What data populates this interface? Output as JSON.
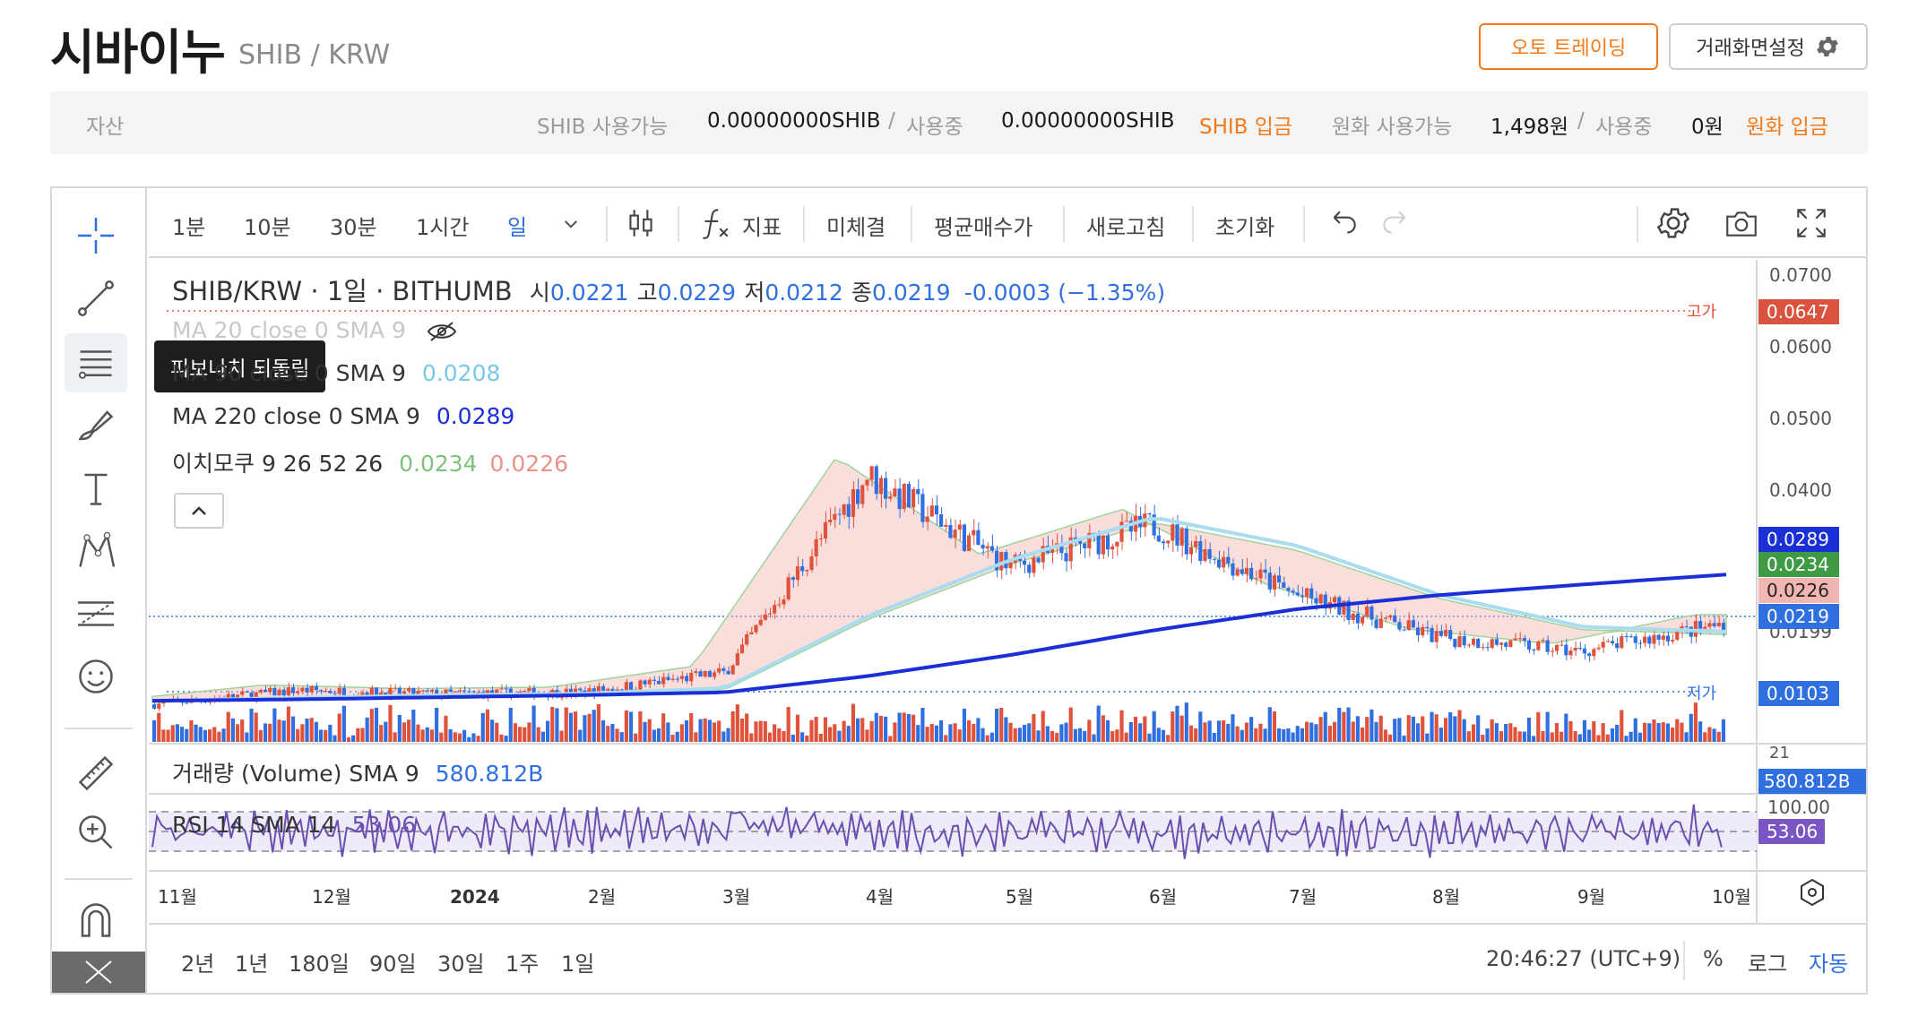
{
  "header": {
    "title": "시바이누",
    "pair": "SHIB / KRW",
    "auto_trading": "오토 트레이딩",
    "screen_settings": "거래화면설정"
  },
  "assets": {
    "label": "자산",
    "shib_available_label": "SHIB 사용가능",
    "shib_available_value": "0.00000000SHIB",
    "sep1": "/",
    "shib_in_use_label": "사용중",
    "shib_in_use_value": "0.00000000SHIB",
    "shib_deposit": "SHIB 입금",
    "krw_available_label": "원화 사용가능",
    "krw_available_value": "1,498원",
    "sep2": "/",
    "krw_in_use_label": "사용중",
    "krw_in_use_value": "0원",
    "krw_deposit": "원화 입금"
  },
  "toolbar": {
    "intervals": [
      "1분",
      "10분",
      "30분",
      "1시간",
      "일"
    ],
    "indicators": "지표",
    "unfilled": "미체결",
    "avg_price": "평균매수가",
    "refresh": "새로고침",
    "reset": "초기화"
  },
  "tooltip": "피보나치 되돌림",
  "legend": {
    "symbol": "SHIB/KRW · 1일 · BITHUMB",
    "o_label": "시",
    "o": "0.0221",
    "h_label": "고",
    "h": "0.0229",
    "l_label": "저",
    "l": "0.0212",
    "c_label": "종",
    "c": "0.0219",
    "change": "-0.0003 (−1.35%)",
    "ma20": "MA 20 close 0 SMA 9",
    "ma90": "MA 90 close 0 SMA 9",
    "ma90_value": "0.0208",
    "ma220": "MA 220 close 0 SMA 9",
    "ma220_value": "0.0289",
    "ichimoku": "이치모쿠 9 26 52 26",
    "ichimoku_v1": "0.0234",
    "ichimoku_v2": "0.0226",
    "volume": "거래량 (Volume) SMA 9",
    "volume_value": "580.812B",
    "rsi": "RSI 14 SMA 14",
    "rsi_value": "53.06"
  },
  "price_axis": {
    "ticks": [
      "0.0700",
      "0.0600",
      "0.0500",
      "0.0400",
      "0.0199"
    ],
    "high_label": "고가",
    "high_value": "0.0647",
    "low_label": "저가",
    "low_value": "0.0103",
    "badges": {
      "ma220": "0.0289",
      "ich1": "0.0234",
      "ich2": "0.0226",
      "last": "0.0219",
      "volume": "580.812B",
      "vol_tick": "21",
      "rsi_top": "100.00",
      "rsi": "53.06"
    }
  },
  "time_axis": [
    "11월",
    "12월",
    "2024",
    "2월",
    "3월",
    "4월",
    "5월",
    "6월",
    "7월",
    "8월",
    "9월",
    "10월"
  ],
  "bottom": {
    "ranges": [
      "2년",
      "1년",
      "180일",
      "90일",
      "30일",
      "1주",
      "1일"
    ],
    "clock": "20:46:27 (UTC+9)",
    "percent": "%",
    "log": "로그",
    "auto": "자동"
  },
  "colors": {
    "accent": "#f27a1a",
    "up": "#e0523c",
    "down": "#2f6fe0",
    "ma220": "#1b2fd6",
    "ma90": "#a9dcef",
    "cloud_green": "#9ed49a",
    "cloud_red": "#f2b6b2",
    "rsi": "#6a4fb0"
  },
  "chart_data": {
    "type": "candlestick",
    "x": [
      "11월",
      "12월",
      "2024",
      "2월",
      "3월",
      "4월",
      "5월",
      "6월",
      "7월",
      "8월",
      "9월",
      "10월"
    ],
    "close": [
      0.0105,
      0.0125,
      0.012,
      0.0122,
      0.015,
      0.043,
      0.03,
      0.036,
      0.026,
      0.02,
      0.018,
      0.0219
    ],
    "ma220": [
      0.011,
      0.0112,
      0.0115,
      0.0118,
      0.0122,
      0.0145,
      0.0175,
      0.021,
      0.024,
      0.026,
      0.0275,
      0.0289
    ],
    "ma90": [
      0.011,
      0.0114,
      0.0118,
      0.012,
      0.0128,
      0.023,
      0.031,
      0.037,
      0.033,
      0.026,
      0.0215,
      0.0208
    ],
    "ylim": [
      0.01,
      0.071
    ]
  }
}
